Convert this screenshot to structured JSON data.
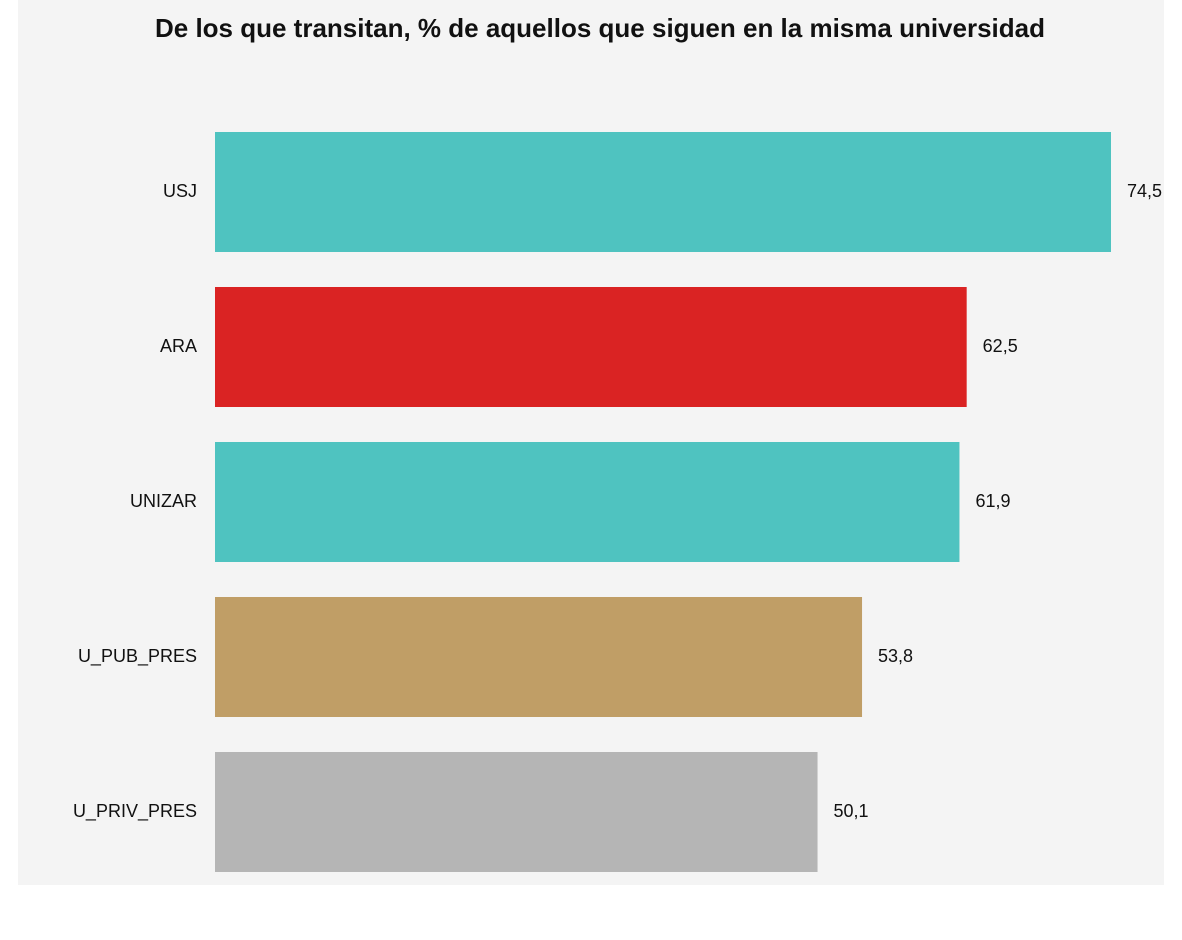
{
  "chart_data": {
    "type": "bar",
    "orientation": "horizontal",
    "title": "De los que transitan, % de aquellos que siguen en la misma universidad",
    "categories": [
      "USJ",
      "ARA",
      "UNIZAR",
      "U_PUB_PRES",
      "U_PRIV_PRES"
    ],
    "values": [
      74.5,
      62.5,
      61.9,
      53.8,
      50.1
    ],
    "value_labels": [
      "74,5",
      "62,5",
      "61,9",
      "53,8",
      "50,1"
    ],
    "colors": [
      "#4fc3c0",
      "#da2323",
      "#4fc3c0",
      "#c09e66",
      "#b5b5b5"
    ]
  }
}
